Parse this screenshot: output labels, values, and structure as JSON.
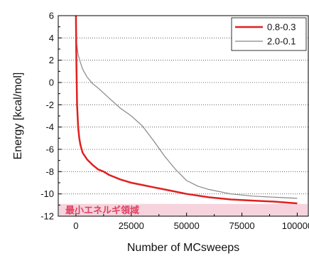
{
  "chart_data": {
    "type": "line",
    "title": "",
    "xlabel": "Number of MCsweeps",
    "ylabel": "Energy [kcal/mol]",
    "xlim": [
      -8000,
      105000
    ],
    "ylim": [
      -12,
      6
    ],
    "xticks": [
      0,
      25000,
      50000,
      75000,
      100000
    ],
    "xtick_labels": [
      "0",
      "25000",
      "50000",
      "75000",
      "100000"
    ],
    "yticks": [
      -12,
      -10,
      -8,
      -6,
      -4,
      -2,
      0,
      2,
      4,
      6
    ],
    "ytick_labels": [
      "-12",
      "-10",
      "-8",
      "-6",
      "-4",
      "-2",
      "0",
      "2",
      "4",
      "6"
    ],
    "grid": "horizontal-dotted",
    "legend": "top-right",
    "annotation": {
      "text": "最小エネルギ領域",
      "ymin": -12,
      "ymax": -10.9,
      "color": "#e04060",
      "fill": "#f6d3dd"
    },
    "series": [
      {
        "name": "0.8-0.3",
        "color": "#e02020",
        "width": 2.5,
        "x": [
          0,
          200,
          500,
          1000,
          1500,
          2000,
          3000,
          4000,
          5000,
          7500,
          10000,
          12500,
          15000,
          20000,
          25000,
          30000,
          35000,
          40000,
          45000,
          50000,
          60000,
          70000,
          80000,
          90000,
          100000
        ],
        "y": [
          6,
          2,
          -2,
          -4,
          -5,
          -5.6,
          -6.3,
          -6.6,
          -6.9,
          -7.4,
          -7.8,
          -8.0,
          -8.3,
          -8.7,
          -9.0,
          -9.2,
          -9.4,
          -9.6,
          -9.8,
          -10.0,
          -10.3,
          -10.5,
          -10.6,
          -10.7,
          -10.85
        ]
      },
      {
        "name": "2.0-0.1",
        "color": "#888888",
        "width": 1.2,
        "x": [
          0,
          300,
          1000,
          2000,
          3000,
          5000,
          7500,
          10000,
          15000,
          20000,
          25000,
          30000,
          35000,
          40000,
          45000,
          50000,
          55000,
          60000,
          70000,
          80000,
          90000,
          100000
        ],
        "y": [
          6,
          3.5,
          2.5,
          1.8,
          1.2,
          0.5,
          -0.1,
          -0.5,
          -1.4,
          -2.3,
          -3.0,
          -3.9,
          -5.2,
          -6.6,
          -7.8,
          -8.8,
          -9.3,
          -9.6,
          -10.0,
          -10.2,
          -10.3,
          -10.4
        ]
      }
    ]
  }
}
